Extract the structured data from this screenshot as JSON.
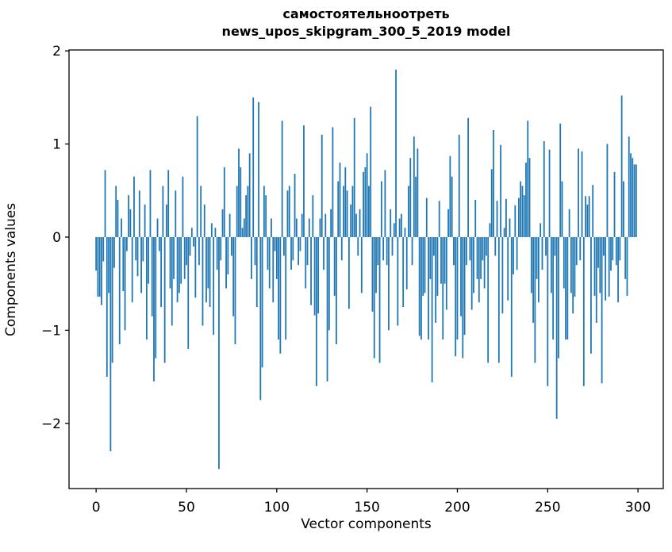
{
  "title": {
    "line1": "самостоятельноотреть",
    "line2": "news_upos_skipgram_300_5_2019 model"
  },
  "chart_data": {
    "type": "bar",
    "title": "самостоятельноотреть — news_upos_skipgram_300_5_2019 model",
    "xlabel": "Vector components",
    "ylabel": "Components values",
    "xlim": [
      -15,
      314
    ],
    "ylim": [
      -2.7,
      2.01
    ],
    "x_ticks": [
      0,
      50,
      100,
      150,
      200,
      250,
      300
    ],
    "y_ticks": [
      -2,
      -1,
      0,
      1,
      2
    ],
    "grid": false,
    "legend": "none",
    "bar_color": "#1f77b4",
    "x_start_index": 0,
    "values": [
      -0.36,
      -0.64,
      -0.64,
      -0.73,
      -0.26,
      0.72,
      -1.5,
      -0.6,
      -2.3,
      -1.35,
      -0.33,
      0.55,
      0.4,
      -1.15,
      0.2,
      -0.58,
      -1.0,
      -0.15,
      0.45,
      0.3,
      -0.7,
      0.65,
      -0.25,
      -0.42,
      0.5,
      -0.6,
      -0.26,
      0.35,
      -1.1,
      -0.5,
      0.72,
      -0.85,
      -1.55,
      -1.3,
      0.2,
      -0.15,
      -0.75,
      0.55,
      -1.35,
      0.35,
      0.72,
      -0.55,
      -0.95,
      -0.45,
      0.5,
      -0.7,
      -0.6,
      -0.5,
      0.65,
      -0.45,
      -0.3,
      -1.2,
      -0.2,
      0.1,
      -0.1,
      -0.65,
      1.3,
      -0.3,
      0.55,
      -0.95,
      0.35,
      -0.7,
      -0.55,
      -0.75,
      0.15,
      -1.05,
      0.1,
      -0.35,
      -2.49,
      -0.25,
      0.3,
      0.75,
      -0.55,
      -0.4,
      0.25,
      -0.2,
      -0.85,
      -1.15,
      0.55,
      0.95,
      0.75,
      0.1,
      0.2,
      0.45,
      0.55,
      0.9,
      -0.45,
      1.5,
      -0.3,
      -0.75,
      1.45,
      -1.75,
      -1.4,
      0.55,
      0.45,
      -0.35,
      -0.55,
      0.2,
      -0.7,
      -0.15,
      -0.45,
      -1.1,
      -1.25,
      1.25,
      -0.2,
      -1.1,
      0.5,
      0.55,
      -0.35,
      -0.25,
      0.68,
      0.2,
      -0.3,
      -0.15,
      0.25,
      1.2,
      -0.55,
      -0.3,
      0.2,
      -0.73,
      0.45,
      -0.84,
      -1.6,
      -0.82,
      0.2,
      1.1,
      -0.35,
      0.25,
      -1.55,
      -1.0,
      0.3,
      1.18,
      -0.63,
      -1.15,
      0.6,
      0.8,
      -0.25,
      0.55,
      0.75,
      0.5,
      -0.77,
      0.35,
      0.55,
      1.28,
      0.25,
      -0.2,
      0.3,
      -0.6,
      0.7,
      0.75,
      0.9,
      0.55,
      1.4,
      -0.8,
      -1.3,
      -0.6,
      -0.3,
      -1.35,
      0.6,
      -0.25,
      0.72,
      -0.3,
      -1.0,
      0.3,
      -0.2,
      0.15,
      1.8,
      -0.95,
      0.2,
      0.25,
      -0.75,
      0.1,
      -0.56,
      0.55,
      0.85,
      -0.3,
      1.08,
      0.65,
      0.95,
      -1.06,
      -1.1,
      -0.63,
      -0.6,
      0.42,
      -1.1,
      -0.45,
      -1.56,
      -0.2,
      -0.92,
      -0.63,
      0.39,
      -0.5,
      -1.1,
      -0.5,
      -0.78,
      0.3,
      0.87,
      0.65,
      -0.3,
      -1.28,
      -1.1,
      1.1,
      -0.85,
      -1.3,
      -1.05,
      -0.3,
      1.28,
      -0.25,
      -0.78,
      -0.6,
      0.4,
      -0.45,
      -0.7,
      -0.45,
      -0.25,
      -0.55,
      -0.2,
      -1.35,
      0.15,
      0.73,
      1.15,
      -0.2,
      0.39,
      -1.35,
      0.99,
      -0.82,
      0.1,
      0.41,
      -0.68,
      0.2,
      -1.5,
      -0.4,
      0.34,
      -0.35,
      0.42,
      0.6,
      0.55,
      0.45,
      0.8,
      1.25,
      0.85,
      -0.6,
      -0.92,
      -1.35,
      -0.45,
      -0.7,
      0.15,
      -0.35,
      1.03,
      -0.2,
      -1.6,
      0.94,
      -0.6,
      -1.1,
      -0.2,
      -1.95,
      -1.3,
      1.22,
      0.6,
      -0.55,
      -1.1,
      -1.1,
      0.3,
      -0.6,
      -0.82,
      -0.64,
      -0.3,
      0.95,
      -0.25,
      0.92,
      -1.6,
      0.44,
      0.35,
      0.44,
      -1.25,
      0.56,
      -0.63,
      -0.92,
      -0.33,
      -0.6,
      -1.57,
      -0.2,
      -0.68,
      1.0,
      -0.64,
      -0.36,
      -0.25,
      0.7,
      -0.3,
      -0.7,
      -0.25,
      1.52,
      0.6,
      -0.45,
      -0.63,
      1.08,
      0.9,
      0.85,
      0.78,
      0.78
    ]
  }
}
